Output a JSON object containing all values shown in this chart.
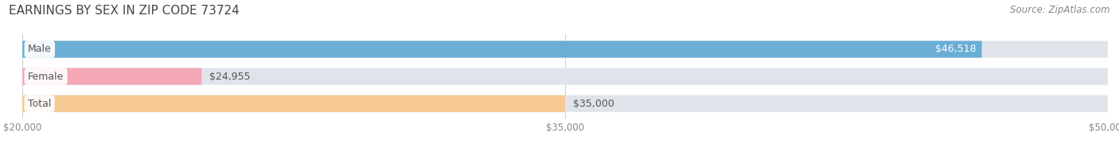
{
  "title": "EARNINGS BY SEX IN ZIP CODE 73724",
  "source": "Source: ZipAtlas.com",
  "categories": [
    "Male",
    "Female",
    "Total"
  ],
  "values": [
    46518,
    24955,
    35000
  ],
  "bar_colors": [
    "#6aaed6",
    "#f4a8b8",
    "#f5c990"
  ],
  "bar_bg_color": "#e8e8e8",
  "label_values": [
    "$46,518",
    "$24,955",
    "$35,000"
  ],
  "value_inside": [
    true,
    false,
    false
  ],
  "xmin": 20000,
  "xmax": 50000,
  "xticks": [
    20000,
    35000,
    50000
  ],
  "xtick_labels": [
    "$20,000",
    "$35,000",
    "$50,000"
  ],
  "title_fontsize": 11,
  "source_fontsize": 8.5,
  "label_fontsize": 9,
  "value_fontsize": 9,
  "bar_height": 0.62,
  "background_color": "#ffffff",
  "grid_color": "#d0d0d0",
  "cat_label_color": "#555555",
  "value_color_inside": "#ffffff",
  "value_color_outside": "#555555"
}
